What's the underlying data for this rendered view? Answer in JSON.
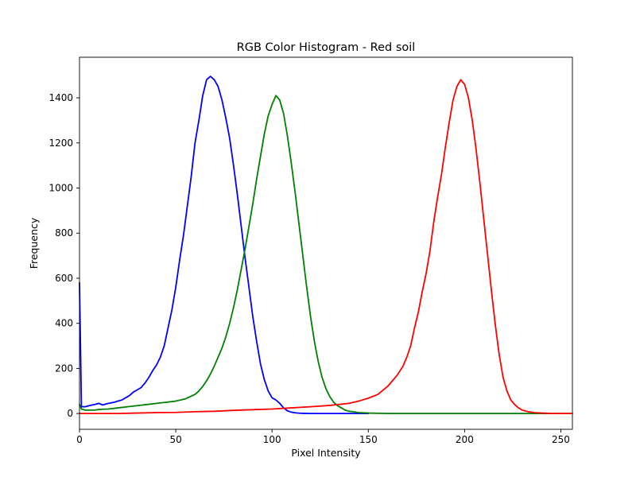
{
  "chart_data": {
    "type": "line",
    "title": "RGB Color Histogram - Red soil",
    "xlabel": "Pixel Intensity",
    "ylabel": "Frequency",
    "xlim": [
      0,
      256
    ],
    "ylim": [
      -70,
      1580
    ],
    "xticks": [
      0,
      50,
      100,
      150,
      200,
      250
    ],
    "yticks": [
      0,
      200,
      400,
      600,
      800,
      1000,
      1200,
      1400
    ],
    "grid": false,
    "legend": "none",
    "series": [
      {
        "color": "#0000ff",
        "x": [
          0,
          1,
          3,
          5,
          8,
          10,
          12,
          15,
          18,
          20,
          22,
          24,
          26,
          28,
          30,
          32,
          34,
          36,
          38,
          40,
          42,
          44,
          46,
          48,
          50,
          52,
          54,
          56,
          58,
          60,
          62,
          64,
          66,
          68,
          70,
          72,
          74,
          76,
          78,
          80,
          82,
          84,
          86,
          88,
          90,
          92,
          94,
          96,
          98,
          100,
          102,
          104,
          106,
          108,
          110,
          112,
          115,
          120,
          125,
          130,
          140,
          150
        ],
        "values": [
          580,
          30,
          30,
          35,
          40,
          45,
          38,
          45,
          50,
          55,
          60,
          70,
          80,
          95,
          105,
          115,
          135,
          160,
          190,
          215,
          250,
          300,
          380,
          460,
          560,
          680,
          790,
          920,
          1050,
          1200,
          1300,
          1410,
          1480,
          1495,
          1480,
          1450,
          1390,
          1310,
          1220,
          1100,
          970,
          830,
          690,
          560,
          430,
          320,
          220,
          150,
          100,
          70,
          60,
          45,
          25,
          12,
          6,
          3,
          1,
          0,
          0,
          0,
          0,
          0
        ]
      },
      {
        "color": "#008000",
        "x": [
          0,
          1,
          3,
          5,
          8,
          10,
          15,
          20,
          25,
          30,
          35,
          40,
          45,
          50,
          55,
          60,
          62,
          64,
          66,
          68,
          70,
          72,
          74,
          76,
          78,
          80,
          82,
          84,
          86,
          88,
          90,
          92,
          94,
          96,
          98,
          100,
          102,
          104,
          106,
          108,
          110,
          112,
          114,
          116,
          118,
          120,
          122,
          124,
          126,
          128,
          130,
          132,
          134,
          136,
          138,
          140,
          142,
          145,
          150,
          155,
          160,
          170,
          180,
          200,
          256
        ],
        "values": [
          40,
          20,
          15,
          15,
          15,
          18,
          20,
          25,
          30,
          35,
          40,
          45,
          50,
          55,
          65,
          85,
          100,
          120,
          145,
          175,
          210,
          250,
          290,
          340,
          400,
          470,
          550,
          640,
          730,
          830,
          930,
          1040,
          1140,
          1240,
          1320,
          1370,
          1410,
          1390,
          1330,
          1230,
          1110,
          980,
          840,
          700,
          560,
          430,
          320,
          230,
          160,
          110,
          75,
          50,
          35,
          25,
          15,
          10,
          8,
          4,
          2,
          1,
          0,
          0,
          0,
          0,
          0
        ]
      },
      {
        "color": "#ff0000",
        "x": [
          0,
          10,
          20,
          30,
          40,
          50,
          60,
          70,
          80,
          90,
          100,
          110,
          120,
          130,
          140,
          145,
          150,
          155,
          160,
          165,
          168,
          170,
          172,
          174,
          176,
          178,
          180,
          182,
          184,
          186,
          188,
          190,
          192,
          194,
          196,
          198,
          200,
          202,
          204,
          206,
          208,
          210,
          212,
          214,
          216,
          218,
          220,
          222,
          224,
          226,
          228,
          230,
          233,
          236,
          240,
          245,
          250,
          256
        ],
        "values": [
          0,
          0,
          0,
          2,
          4,
          5,
          8,
          10,
          14,
          17,
          20,
          25,
          30,
          36,
          45,
          55,
          68,
          85,
          120,
          170,
          210,
          250,
          300,
          380,
          450,
          540,
          620,
          720,
          850,
          960,
          1060,
          1180,
          1290,
          1390,
          1450,
          1480,
          1460,
          1400,
          1300,
          1170,
          1020,
          860,
          700,
          540,
          390,
          260,
          160,
          100,
          60,
          40,
          25,
          15,
          8,
          4,
          2,
          0,
          0,
          0
        ]
      }
    ]
  }
}
